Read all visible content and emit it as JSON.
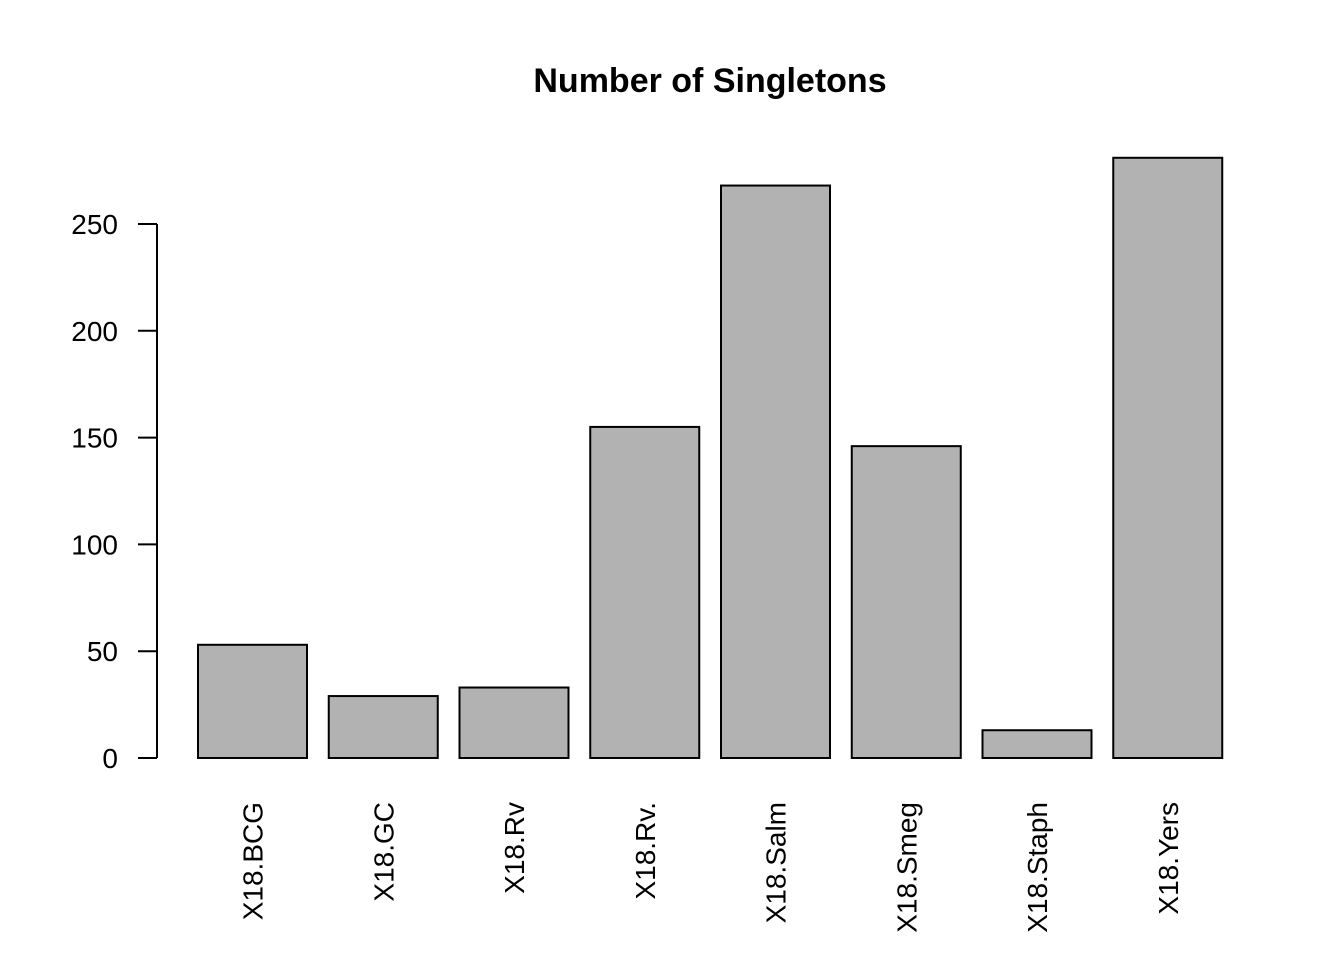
{
  "chart_data": {
    "type": "bar",
    "title": "Number of Singletons",
    "xlabel": "",
    "ylabel": "",
    "categories": [
      "X18.BCG",
      "X18.GC",
      "X18.Rv",
      "X18.Rv.",
      "X18.Salm",
      "X18.Smeg",
      "X18.Staph",
      "X18.Yers"
    ],
    "values": [
      53,
      29,
      33,
      155,
      268,
      146,
      13,
      281
    ],
    "y_ticks": [
      "0",
      "50",
      "100",
      "150",
      "200",
      "250"
    ],
    "ylim": [
      0,
      281
    ],
    "grid": false,
    "legend": "none",
    "bar_color": "#b2b2b2",
    "outline_color": "#000000"
  }
}
